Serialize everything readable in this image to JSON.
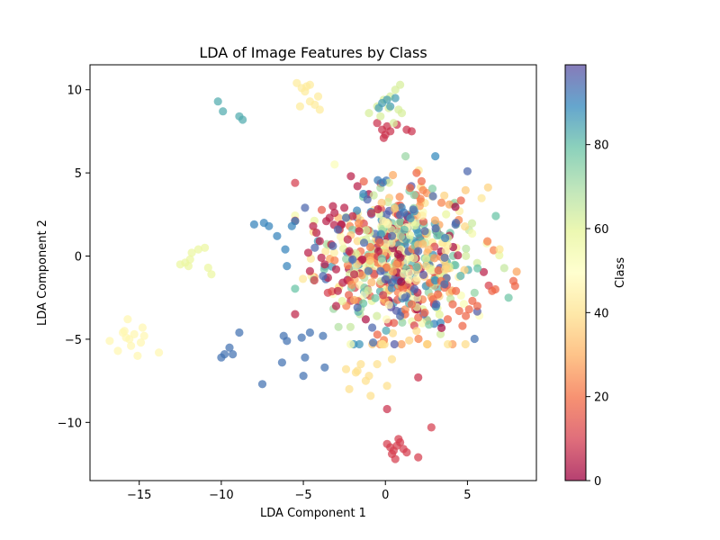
{
  "chart_data": {
    "type": "scatter",
    "title": "LDA of Image Features by Class",
    "xlabel": "LDA Component 1",
    "ylabel": "LDA Component 2",
    "xlim": [
      -18,
      9.2
    ],
    "ylim": [
      -13.5,
      11.5
    ],
    "xticks": [
      -15,
      -10,
      -5,
      0,
      5
    ],
    "yticks": [
      -10,
      -5,
      0,
      5,
      10
    ],
    "grid": false,
    "colorbar": {
      "label": "Class",
      "range": [
        0,
        99
      ],
      "ticks": [
        0,
        20,
        40,
        60,
        80
      ],
      "colormap": "Spectral",
      "stops": [
        "#9e0142",
        "#d53e4f",
        "#f46d43",
        "#fdae61",
        "#fee08b",
        "#ffffbf",
        "#e6f598",
        "#abdda4",
        "#66c2a5",
        "#3288bd",
        "#5e4fa2"
      ]
    },
    "clusters": [
      {
        "class": 47,
        "x": [
          -16.8,
          -16.3,
          -15.9,
          -15.7,
          -15.6,
          -15.3,
          -15.1,
          -14.8,
          -14.7,
          -14.9,
          -15.5,
          -13.8,
          -15.8,
          -16.0
        ],
        "y": [
          -5.1,
          -5.7,
          -4.5,
          -3.8,
          -5.0,
          -4.7,
          -6.0,
          -4.3,
          -4.8,
          -5.2,
          -5.4,
          -5.8,
          -4.9,
          -4.6
        ]
      },
      {
        "class": 57,
        "x": [
          -12.5,
          -12.2,
          -11.8,
          -11.4,
          -11.0,
          -10.6,
          -12.0,
          -11.9,
          -10.8
        ],
        "y": [
          -0.5,
          -0.4,
          0.2,
          0.4,
          0.5,
          -1.1,
          -0.6,
          -0.2,
          -0.7
        ]
      },
      {
        "class": 83,
        "x": [
          -10.2,
          -9.9,
          -8.9,
          -8.7
        ],
        "y": [
          9.3,
          8.7,
          8.4,
          8.2
        ]
      },
      {
        "class": 90,
        "x": [
          -8.0,
          -7.4,
          -7.1,
          -6.6,
          -6.1,
          -5.7,
          -5.5,
          -6.0
        ],
        "y": [
          1.9,
          2.0,
          1.8,
          1.2,
          0.4,
          1.8,
          2.1,
          -0.6
        ]
      },
      {
        "class": 93,
        "x": [
          -8.9,
          -9.5,
          -9.3,
          -10.0,
          -9.8,
          -7.5,
          -6.2,
          -6.0,
          -6.3,
          -5.1,
          -4.6,
          -3.8,
          -4.9,
          -3.7,
          -5.0
        ],
        "y": [
          -4.6,
          -5.5,
          -5.9,
          -6.1,
          -5.9,
          -7.7,
          -4.8,
          -5.1,
          -6.4,
          -4.9,
          -4.6,
          -4.8,
          -6.1,
          -6.7,
          -7.2
        ]
      },
      {
        "class": 43,
        "x": [
          -5.4,
          -5.1,
          -4.9,
          -4.8,
          -4.6,
          -4.3,
          -4.1,
          -5.2,
          -4.6,
          -4.0
        ],
        "y": [
          10.4,
          10.1,
          9.9,
          10.2,
          9.3,
          9.1,
          9.6,
          9.0,
          10.3,
          8.8
        ]
      },
      {
        "class": 40,
        "x": [
          -2.4,
          -1.8,
          -1.5,
          -2.2,
          -1.2,
          -1.7,
          -0.9,
          -0.5,
          -0.2,
          0.4,
          0.1,
          -1.0
        ],
        "y": [
          -6.8,
          -7.0,
          -6.5,
          -8.0,
          -7.5,
          -6.9,
          -8.4,
          -6.5,
          -5.3,
          -6.2,
          -7.8,
          -7.2
        ]
      },
      {
        "class": 10,
        "x": [
          0.1,
          0.3,
          0.4,
          0.6,
          0.8,
          0.9,
          1.1,
          0.7,
          0.5,
          2.0,
          2.8,
          1.3
        ],
        "y": [
          -11.3,
          -11.5,
          -11.9,
          -12.2,
          -11.0,
          -11.2,
          -11.6,
          -11.4,
          -11.7,
          -12.1,
          -10.3,
          -11.8
        ]
      },
      {
        "class": 8,
        "x": [
          -0.5,
          -0.2,
          0.0,
          0.1,
          0.3,
          1.3,
          1.6,
          0.7,
          -0.1,
          2.0,
          0.1
        ],
        "y": [
          8.0,
          7.6,
          7.3,
          7.8,
          7.5,
          7.6,
          7.5,
          7.9,
          7.1,
          -7.3,
          -9.2
        ]
      },
      {
        "class": 62,
        "x": [
          -1.0,
          -0.5,
          -0.1,
          0.3,
          0.6,
          0.8,
          1.0,
          -0.3,
          0.2,
          0.5,
          0.9
        ],
        "y": [
          8.6,
          9.0,
          9.4,
          9.6,
          10.0,
          8.8,
          8.6,
          8.4,
          8.9,
          8.0,
          10.3
        ]
      },
      {
        "class": 85,
        "x": [
          -0.2,
          0.1,
          0.3,
          -0.4,
          0.6
        ],
        "y": [
          9.2,
          9.4,
          9.0,
          8.9,
          9.5
        ]
      },
      {
        "class": 5,
        "x": [
          -3.1,
          -3.6,
          -4.2,
          -2.7,
          -3.3,
          -3.9,
          -2.5,
          -3.0,
          -1.6,
          -2.2,
          -3.5,
          -4.6,
          -4.4,
          -2.9,
          -2.0,
          -1.7,
          -3.2,
          -1.4,
          -2.6,
          -4.0,
          -3.7,
          -2.3,
          -4.7,
          -1.9,
          -3.4,
          -3.0,
          -2.8,
          -2.1
        ],
        "y": [
          2.6,
          2.1,
          1.4,
          1.9,
          0.7,
          -0.1,
          2.9,
          -0.8,
          1.5,
          0.3,
          -1.3,
          -0.9,
          1.8,
          -2.1,
          2.4,
          4.2,
          3.0,
          -0.2,
          -1.6,
          0.9,
          -0.5,
          1.0,
          0.2,
          -1.1,
          2.3,
          -3.0,
          1.6,
          4.8
        ]
      },
      {
        "class": 18,
        "x": [
          3.2,
          3.6,
          4.1,
          4.5,
          4.9,
          5.3,
          5.6,
          4.3,
          3.8,
          5.1,
          2.9,
          4.7,
          3.4,
          2.4,
          2.0,
          1.6,
          1.2,
          7.8,
          7.9,
          6.7,
          6.5,
          2.2,
          1.9,
          1.5
        ],
        "y": [
          -2.3,
          -1.9,
          -2.9,
          -3.3,
          -3.6,
          -2.7,
          -3.0,
          -2.1,
          -3.8,
          -3.2,
          -2.6,
          -4.2,
          -1.5,
          -3.4,
          -3.7,
          -2.9,
          -3.5,
          -1.5,
          -1.8,
          -2.0,
          -2.1,
          4.5,
          5.0,
          4.1
        ]
      },
      {
        "class": 95,
        "x": [
          -4.9,
          -3.8,
          -3.2,
          -2.4,
          -1.7,
          -1.1,
          -0.3,
          0.4,
          1.2,
          2.0,
          2.9,
          3.6,
          4.3,
          5.0,
          -0.8,
          1.7,
          -2.0,
          0.9,
          2.4,
          -1.3,
          3.1,
          -4.3,
          -2.9,
          0.0
        ],
        "y": [
          2.9,
          -1.2,
          0.6,
          2.3,
          -3.1,
          3.4,
          -0.9,
          1.2,
          -2.5,
          0.3,
          3.6,
          -1.7,
          2.0,
          5.1,
          -4.3,
          2.8,
          -0.2,
          -3.6,
          1.5,
          0.8,
          -2.9,
          0.5,
          1.6,
          -1.4
        ]
      }
    ],
    "bulk": {
      "note": "dense mixed-class cloud",
      "center": [
        0.6,
        -0.1
      ],
      "spread": [
        2.4,
        2.2
      ],
      "count": 620
    }
  }
}
